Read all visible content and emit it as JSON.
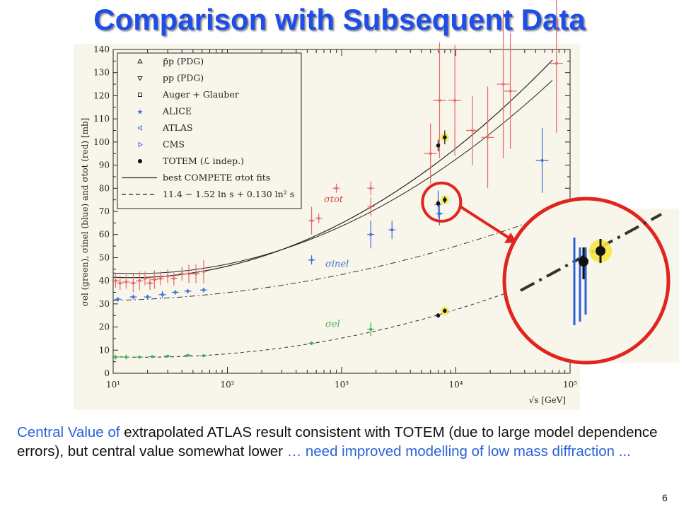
{
  "slide": {
    "title": "Comparison with Subsequent Data",
    "page_number": "6",
    "caption": [
      {
        "text": "Central Value of ",
        "accent": true
      },
      {
        "text": "extrapolated ATLAS result consistent with TOTEM (due to large model dependence errors), but central value somewhat lower ",
        "accent": false
      },
      {
        "text": "… need improved modelling of low mass diffraction ...",
        "accent": true
      }
    ]
  },
  "chart_data": {
    "type": "scatter",
    "xscale": "log",
    "xlim": [
      10,
      100000
    ],
    "ylim": [
      0,
      140
    ],
    "xlabel": "√s  [GeV]",
    "ylabel": "σel (green), σinel (blue) and σtot (red)  [mb]",
    "xticks": [
      {
        "value": 10,
        "label": "10¹"
      },
      {
        "value": 100,
        "label": "10²"
      },
      {
        "value": 1000,
        "label": "10³"
      },
      {
        "value": 10000,
        "label": "10⁴"
      },
      {
        "value": 100000,
        "label": "10⁵"
      }
    ],
    "yticks": [
      0,
      10,
      20,
      30,
      40,
      50,
      60,
      70,
      80,
      90,
      100,
      110,
      120,
      130,
      140
    ],
    "legend": {
      "placement": "top-left",
      "entries": [
        {
          "marker": "tri-up",
          "label": "p̄p (PDG)"
        },
        {
          "marker": "tri-down",
          "label": "pp (PDG)"
        },
        {
          "marker": "square",
          "label": "Auger + Glauber"
        },
        {
          "marker": "star",
          "label": "ALICE"
        },
        {
          "marker": "tri-left",
          "label": "ATLAS"
        },
        {
          "marker": "tri-right",
          "label": "CMS"
        },
        {
          "marker": "dot",
          "label": "TOTEM (ℒ indep.)"
        },
        {
          "marker": "solid-line",
          "label": "best COMPETE σtot fits"
        },
        {
          "marker": "dashed-line",
          "label": "11.4 − 1.52 ln s + 0.130 ln² s"
        }
      ]
    },
    "curve_labels": [
      {
        "text": "σtot",
        "x": 700,
        "y": 74,
        "color": "#e0484a"
      },
      {
        "text": "σinel",
        "x": 720,
        "y": 46,
        "color": "#3a6fd8"
      },
      {
        "text": "σel",
        "x": 720,
        "y": 20,
        "color": "#3fae4f"
      }
    ],
    "series": [
      {
        "name": "σtot",
        "color": "#e86a6a",
        "points": [
          {
            "x": 10.5,
            "y": 40,
            "err": 3
          },
          {
            "x": 11.5,
            "y": 39,
            "err": 3
          },
          {
            "x": 13,
            "y": 39.5,
            "err": 3
          },
          {
            "x": 15,
            "y": 39,
            "err": 4
          },
          {
            "x": 17,
            "y": 40,
            "err": 4
          },
          {
            "x": 19,
            "y": 41,
            "err": 3
          },
          {
            "x": 21,
            "y": 39,
            "err": 3
          },
          {
            "x": 23,
            "y": 40.5,
            "err": 4
          },
          {
            "x": 26,
            "y": 41,
            "err": 3
          },
          {
            "x": 30,
            "y": 42,
            "err": 3
          },
          {
            "x": 34,
            "y": 41,
            "err": 3
          },
          {
            "x": 40,
            "y": 43,
            "err": 3
          },
          {
            "x": 46,
            "y": 43,
            "err": 4
          },
          {
            "x": 53,
            "y": 43,
            "err": 4
          },
          {
            "x": 62,
            "y": 44,
            "err": 5
          },
          {
            "x": 546,
            "y": 66,
            "err": 6
          },
          {
            "x": 630,
            "y": 67,
            "err": 2
          },
          {
            "x": 900,
            "y": 80,
            "err": 2
          },
          {
            "x": 1800,
            "y": 72,
            "err": 4
          },
          {
            "x": 1800,
            "y": 80,
            "err": 3
          },
          {
            "x": 6000,
            "y": 95,
            "err": 13
          },
          {
            "x": 7200,
            "y": 118,
            "err": 25
          },
          {
            "x": 9800,
            "y": 118,
            "err": 24
          },
          {
            "x": 14000,
            "y": 105,
            "err": 15
          },
          {
            "x": 19000,
            "y": 102,
            "err": 22
          },
          {
            "x": 26000,
            "y": 125,
            "err": 32
          },
          {
            "x": 30000,
            "y": 122,
            "err": 25
          },
          {
            "x": 76000,
            "y": 134,
            "err": 30
          }
        ]
      },
      {
        "name": "σinel",
        "color": "#3a6fd8",
        "points": [
          {
            "x": 11,
            "y": 32,
            "err": 1
          },
          {
            "x": 15,
            "y": 33,
            "err": 1
          },
          {
            "x": 20,
            "y": 33,
            "err": 1
          },
          {
            "x": 27,
            "y": 34,
            "err": 1.5
          },
          {
            "x": 35,
            "y": 35,
            "err": 1
          },
          {
            "x": 45,
            "y": 35.5,
            "err": 1
          },
          {
            "x": 62,
            "y": 36,
            "err": 1
          },
          {
            "x": 546,
            "y": 49,
            "err": 2
          },
          {
            "x": 1800,
            "y": 60,
            "err": 6
          },
          {
            "x": 2760,
            "y": 62,
            "err": 4
          },
          {
            "x": 7000,
            "y": 73,
            "err": 6
          },
          {
            "x": 7200,
            "y": 69,
            "err": 5
          },
          {
            "x": 57000,
            "y": 92,
            "err": 14
          }
        ]
      },
      {
        "name": "σel",
        "color": "#3fae4f",
        "points": [
          {
            "x": 10.5,
            "y": 7,
            "err": 1
          },
          {
            "x": 13,
            "y": 7,
            "err": 1
          },
          {
            "x": 17,
            "y": 7,
            "err": 0.6
          },
          {
            "x": 22,
            "y": 7.2,
            "err": 0.6
          },
          {
            "x": 30,
            "y": 7.4,
            "err": 0.6
          },
          {
            "x": 45,
            "y": 7.8,
            "err": 0.6
          },
          {
            "x": 62,
            "y": 7.6,
            "err": 0.6
          },
          {
            "x": 546,
            "y": 13,
            "err": 0.8
          },
          {
            "x": 1800,
            "y": 19,
            "err": 3
          }
        ]
      },
      {
        "name": "TOTEM (ℒ indep.)",
        "color": "#111111",
        "points": [
          {
            "x": 7000,
            "y": 98.5,
            "err": 2.5
          },
          {
            "x": 8000,
            "y": 102,
            "err": 3,
            "highlight": true
          },
          {
            "x": 7000,
            "y": 73.5,
            "err": 1.5
          },
          {
            "x": 8000,
            "y": 75,
            "err": 1.5,
            "highlight": true
          },
          {
            "x": 7000,
            "y": 25,
            "err": 1
          },
          {
            "x": 8000,
            "y": 27,
            "err": 1,
            "highlight": true
          }
        ]
      }
    ],
    "annotations": [
      {
        "type": "zoom-callout",
        "text": "",
        "target_x": 7500,
        "target_y": 74
      }
    ]
  }
}
